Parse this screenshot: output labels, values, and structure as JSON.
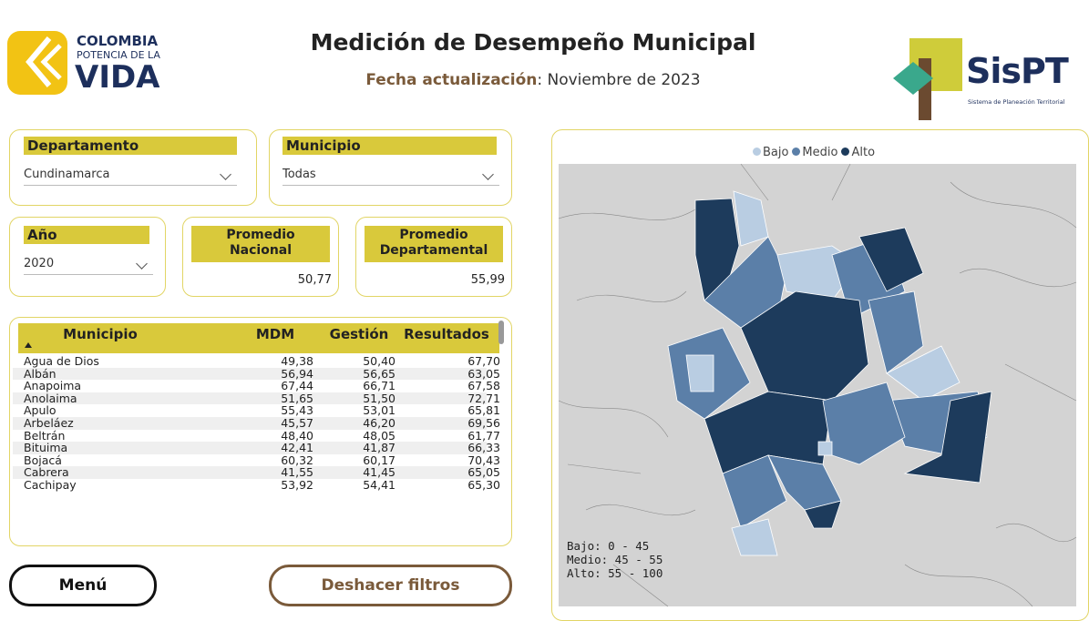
{
  "header": {
    "logo": {
      "line1": "COLOMBIA",
      "line2": "POTENCIA DE LA",
      "line3": "VIDA"
    },
    "title": "Medición de Desempeño Municipal",
    "update_label": "Fecha actualización",
    "update_value": ": Noviembre de 2023",
    "sispt": {
      "name": "SisPT",
      "tagline": "Sistema de Planeación Territorial"
    }
  },
  "filters": {
    "departamento": {
      "label": "Departamento",
      "value": "Cundinamarca"
    },
    "municipio": {
      "label": "Municipio",
      "value": "Todas"
    },
    "anio": {
      "label": "Año",
      "value": "2020"
    }
  },
  "kpis": [
    {
      "label": "Promedio Nacional",
      "value": "50,77"
    },
    {
      "label": "Promedio Departamental",
      "value": "55,99"
    }
  ],
  "table": {
    "columns": [
      "Municipio",
      "MDM",
      "Gestión",
      "Resultados"
    ],
    "rows": [
      [
        "Agua de Dios",
        "49,38",
        "50,40",
        "67,70"
      ],
      [
        "Albán",
        "56,94",
        "56,65",
        "63,05"
      ],
      [
        "Anapoima",
        "67,44",
        "66,71",
        "67,58"
      ],
      [
        "Anolaima",
        "51,65",
        "51,50",
        "72,71"
      ],
      [
        "Apulo",
        "55,43",
        "53,01",
        "65,81"
      ],
      [
        "Arbeláez",
        "45,57",
        "46,20",
        "69,56"
      ],
      [
        "Beltrán",
        "48,40",
        "48,05",
        "61,77"
      ],
      [
        "Bituima",
        "42,41",
        "41,87",
        "66,33"
      ],
      [
        "Bojacá",
        "60,32",
        "60,17",
        "70,43"
      ],
      [
        "Cabrera",
        "41,55",
        "41,45",
        "65,05"
      ],
      [
        "Cachipay",
        "53,92",
        "54,41",
        "65,30"
      ]
    ]
  },
  "map": {
    "legend": [
      {
        "name": "Bajo",
        "color": "#b9cde2"
      },
      {
        "name": "Medio",
        "color": "#5b7fa8"
      },
      {
        "name": "Alto",
        "color": "#1d3b5c"
      }
    ],
    "ranges": [
      "Bajo: 0 - 45",
      "Medio: 45 - 55",
      "Alto: 55 - 100"
    ]
  },
  "buttons": {
    "menu": "Menú",
    "reset": "Deshacer filtros"
  }
}
